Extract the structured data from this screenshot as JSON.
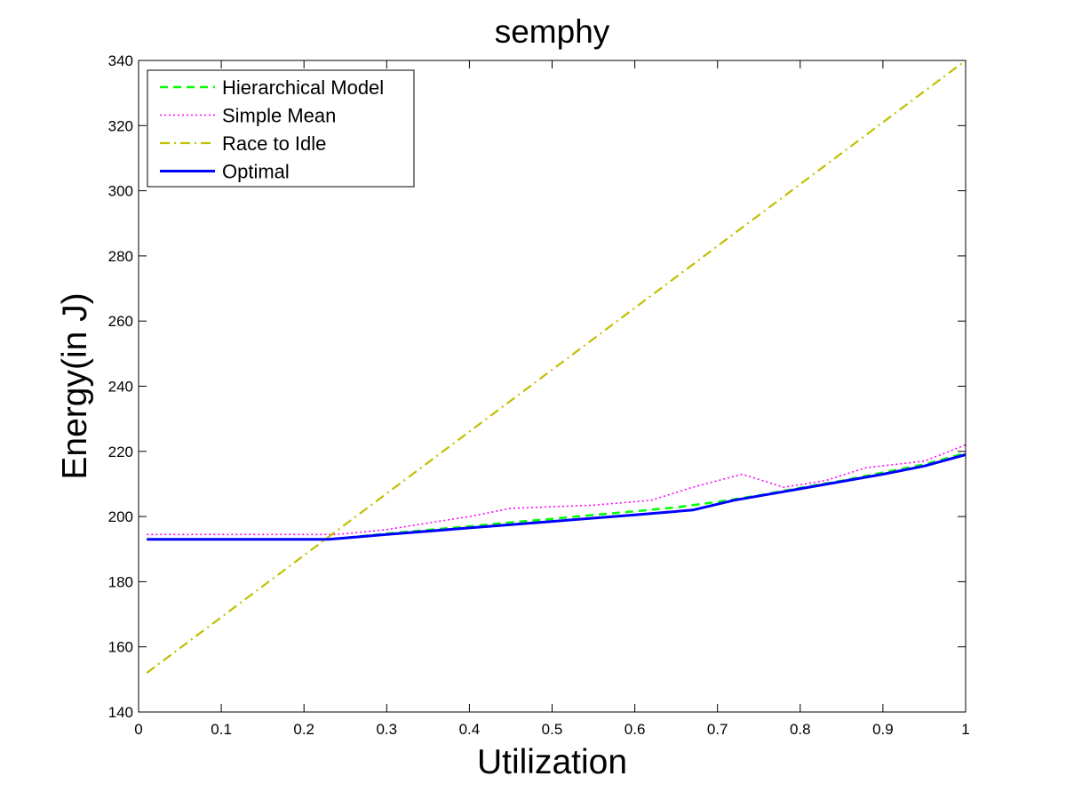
{
  "chart_data": {
    "type": "line",
    "title": "semphy",
    "xlabel": "Utilization",
    "ylabel": "Energy(in J)",
    "xlim": [
      0,
      1
    ],
    "ylim": [
      140,
      340
    ],
    "xticks": [
      "0",
      "0.1",
      "0.2",
      "0.3",
      "0.4",
      "0.5",
      "0.6",
      "0.7",
      "0.8",
      "0.9",
      "1"
    ],
    "yticks": [
      "140",
      "160",
      "180",
      "200",
      "220",
      "240",
      "260",
      "280",
      "300",
      "320",
      "340"
    ],
    "grid": false,
    "legend_position": "top-left",
    "series": [
      {
        "name": "Hierarchical Model",
        "color": "#00ff00",
        "style": "dashed",
        "x": [
          0.01,
          0.23,
          0.31,
          0.4,
          0.45,
          0.5,
          0.55,
          0.6,
          0.65,
          0.7,
          0.75,
          0.8,
          0.85,
          0.9,
          0.95,
          1.0
        ],
        "y": [
          193.0,
          193.0,
          195.0,
          197.0,
          198.2,
          199.3,
          200.5,
          201.6,
          202.8,
          204.5,
          206.5,
          208.8,
          211.0,
          213.5,
          216.0,
          219.5
        ]
      },
      {
        "name": "Simple Mean",
        "color": "#ff00ff",
        "style": "dotted",
        "x": [
          0.01,
          0.24,
          0.3,
          0.35,
          0.4,
          0.45,
          0.5,
          0.55,
          0.62,
          0.67,
          0.73,
          0.78,
          0.83,
          0.88,
          0.95,
          1.0
        ],
        "y": [
          194.5,
          194.5,
          196.0,
          198.0,
          200.0,
          202.5,
          203.0,
          203.5,
          205.0,
          209.0,
          213.0,
          209.0,
          211.0,
          215.0,
          217.0,
          222.0
        ]
      },
      {
        "name": "Race to Idle",
        "color": "#c0c000",
        "style": "dashdot",
        "x": [
          0.01,
          1.0
        ],
        "y": [
          152.0,
          340.0
        ]
      },
      {
        "name": "Optimal",
        "color": "#0000ff",
        "style": "solid",
        "x": [
          0.01,
          0.23,
          0.3,
          0.4,
          0.5,
          0.6,
          0.67,
          0.72,
          0.8,
          0.9,
          0.95,
          1.0
        ],
        "y": [
          193.0,
          193.0,
          194.5,
          196.5,
          198.5,
          200.5,
          202.0,
          205.0,
          208.5,
          213.0,
          215.5,
          219.0
        ]
      }
    ]
  }
}
